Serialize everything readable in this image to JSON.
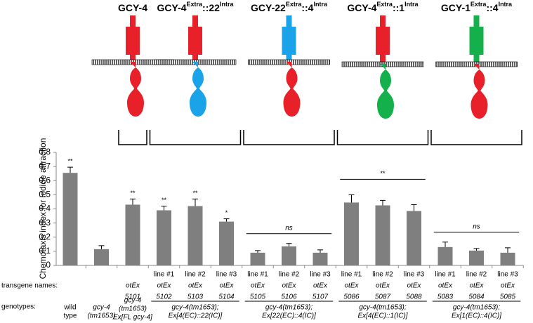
{
  "constructs": [
    {
      "name": [
        {
          "text": "GCY-4"
        }
      ],
      "extra_color": "#e8202a",
      "intra_color": "#e8202a"
    },
    {
      "name": [
        {
          "text": "GCY-4"
        },
        {
          "text": "Extra",
          "sup": true
        },
        {
          "text": "::22"
        },
        {
          "text": "Intra",
          "sup": true
        }
      ],
      "extra_color": "#e8202a",
      "intra_color": "#1aa3e8"
    },
    {
      "name": [
        {
          "text": "GCY-22"
        },
        {
          "text": "Extra",
          "sup": true
        },
        {
          "text": "::4"
        },
        {
          "text": "Intra",
          "sup": true
        }
      ],
      "extra_color": "#1aa3e8",
      "intra_color": "#e8202a"
    },
    {
      "name": [
        {
          "text": "GCY-4"
        },
        {
          "text": "Extra",
          "sup": true
        },
        {
          "text": "::1"
        },
        {
          "text": "Intra",
          "sup": true
        }
      ],
      "extra_color": "#e8202a",
      "intra_color": "#14b04c"
    },
    {
      "name": [
        {
          "text": "GCY-1"
        },
        {
          "text": "Extra",
          "sup": true
        },
        {
          "text": "::4"
        },
        {
          "text": "Intra",
          "sup": true
        }
      ],
      "extra_color": "#14b04c",
      "intra_color": "#e8202a"
    }
  ],
  "chart_data": {
    "type": "bar",
    "y_label": "Chemotaxis index for iodide attraction",
    "color": "#7f7f7f",
    "ylim": [
      0,
      0.8
    ],
    "yticks": [
      0,
      0.1,
      0.2,
      0.3,
      0.4,
      0.5,
      0.6,
      0.7,
      0.8
    ],
    "values": [
      0.655,
      0.115,
      0.43,
      0.39,
      0.42,
      0.31,
      0.09,
      0.135,
      0.09,
      0.445,
      0.425,
      0.385,
      0.13,
      0.105,
      0.09
    ],
    "errors": [
      0.04,
      0.025,
      0.04,
      0.03,
      0.05,
      0.02,
      0.015,
      0.02,
      0.02,
      0.055,
      0.035,
      0.045,
      0.035,
      0.015,
      0.035
    ],
    "annotations": [
      "**",
      null,
      "**",
      "**",
      "**",
      "*",
      null,
      null,
      null,
      null,
      null,
      null,
      null,
      null,
      null
    ],
    "group_tests": [
      null,
      null,
      null,
      null,
      "ns",
      "**",
      "ns"
    ]
  },
  "transgene_label": "transgene names:",
  "genotype_label": "genotypes:",
  "transgene_names": [
    null,
    null,
    [
      "otEx",
      "5101"
    ],
    [
      "line #1",
      "otEx",
      "5102"
    ],
    [
      "line #2",
      "otEx",
      "5103"
    ],
    [
      "line #3",
      "otEx",
      "5104"
    ],
    [
      "line #1",
      "otEx",
      "5105"
    ],
    [
      "line #2",
      "otEx",
      "5106"
    ],
    [
      "line #3",
      "otEx",
      "5107"
    ],
    [
      "line #1",
      "otEx",
      "5086"
    ],
    [
      "line #2",
      "otEx",
      "5087"
    ],
    [
      "line #3",
      "otEx",
      "5088"
    ],
    [
      "line #1",
      "otEx",
      "5083"
    ],
    [
      "line #2",
      "otEx",
      "5084"
    ],
    [
      "line #3",
      "otEx",
      "5085"
    ]
  ],
  "genotypes": [
    [
      "wild",
      "type"
    ],
    [
      "gcy-4",
      "(tm1653)"
    ],
    [
      "gcy-4",
      "(tm1653)",
      "Ex[FL gcy-4]"
    ],
    [
      "gcy-4(tm1653);",
      "Ex[4(EC)::22(IC)]"
    ],
    [
      "gcy-4(tm1653);",
      "Ex[22(EC)::4(IC)]"
    ],
    [
      "gcy-4(tm1653);",
      "Ex[4(EC)::1(IC)]"
    ],
    [
      "gcy-4(tm1653);",
      "Ex[1(EC)::4(IC)]"
    ]
  ]
}
